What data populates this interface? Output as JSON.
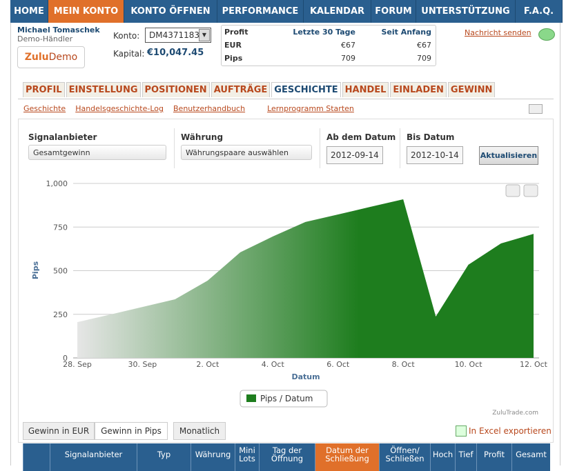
{
  "nav": [
    "HOME",
    "MEIN KONTO",
    "KONTO ÖFFNEN",
    "PERFORMANCE",
    "KALENDAR",
    "FORUM",
    "UNTERSTÜTZUNG",
    "F.A.Q."
  ],
  "account": {
    "name": "Michael Tomaschek",
    "role": "Demo-Händler",
    "logo": {
      "brand": "Zulu",
      "suffix": "Demo"
    },
    "konto_label": "Konto:",
    "konto": "DM4371183",
    "kapital_label": "Kapital:",
    "kapital": "€10,047.45"
  },
  "summary": {
    "header": [
      "Profit",
      "Letzte 30 Tage",
      "Seit Anfang"
    ],
    "rows": [
      [
        "EUR",
        "€67",
        "€67"
      ],
      [
        "Pips",
        "709",
        "709"
      ]
    ]
  },
  "message": "Nachricht senden",
  "tabs": [
    "PROFIL",
    "EINSTELLUNG",
    "POSITIONEN",
    "AUFTRÄGE",
    "GESCHICHTE",
    "HANDEL",
    "EINLADEN",
    "GEWINN"
  ],
  "sublinks": [
    "Geschichte",
    "Handelsgeschichte-Log",
    "Benutzerhandbuch",
    "Lernprogramm Starten"
  ],
  "filters": [
    {
      "label": "Signalanbieter",
      "value": "Gesamtgewinn"
    },
    {
      "label": "Währung",
      "value": "Währungspaare auswählen"
    },
    {
      "label": "Ab dem Datum",
      "value": "2012-09-14"
    },
    {
      "label": "Bis Datum",
      "value": "2012-10-14"
    }
  ],
  "update_button": "Aktualisieren",
  "chart_data": {
    "type": "area",
    "y_label": "Pips",
    "x_label": "Datum",
    "credit": "ZuluTrade.com",
    "categories": [
      "28. Sep",
      null,
      "30. Sep",
      null,
      "2. Oct",
      null,
      "4. Oct",
      null,
      "6. Oct",
      null,
      "8. Oct",
      null,
      "10. Oct",
      null,
      "12. Oct"
    ],
    "series": [
      {
        "name": "Pips / Datum",
        "color": "#1e7d1e",
        "values": [
          205,
          248,
          292,
          336,
          443,
          605,
          696,
          779,
          822,
          866,
          909,
          237,
          534,
          656,
          711
        ]
      }
    ],
    "ylim": [
      0,
      1000
    ],
    "yticks": [
      0,
      250,
      500,
      750,
      {
        "value": 1000,
        "label": "1,000"
      }
    ],
    "grid": true
  },
  "view_buttons": [
    "Gewinn in EUR",
    "Gewinn in Pips",
    "Monatlich"
  ],
  "export": "In Excel exportieren",
  "table": {
    "header": [
      "Signalanbieter",
      "Typ",
      "Währung",
      "Mini Lots",
      "Tag der Öffnung",
      "Datum der Schließung",
      "Öffnen/ Schließen",
      "Hoch",
      "Tief",
      "Profit",
      "Gesamt"
    ]
  }
}
